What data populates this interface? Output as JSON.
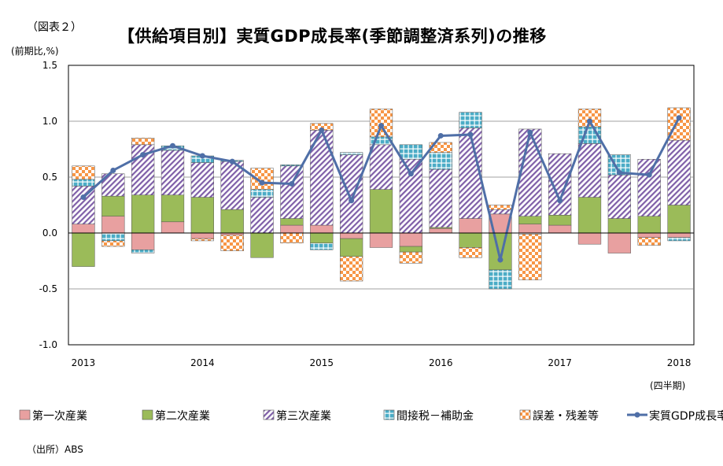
{
  "figure_label": "（図表２）",
  "unit_label": "(前期比,%)",
  "title": "【供給項目別】実質GDP成長率(季節調整済系列)の推移",
  "period_label": "(四半期)",
  "source": "（出所）ABS",
  "chart_data": {
    "type": "bar",
    "stacked": true,
    "title": "【供給項目別】実質GDP成長率(季節調整済系列)の推移",
    "ylabel": "(前期比,%)",
    "xlabel": "(四半期)",
    "ylim": [
      -1.0,
      1.5
    ],
    "yticks": [
      "1.5",
      "1.0",
      "0.5",
      "0.0",
      "-0.5",
      "-1.0"
    ],
    "ytick_values": [
      1.5,
      1.0,
      0.5,
      0.0,
      -0.5,
      -1.0
    ],
    "grid": true,
    "legend_position": "bottom",
    "year_labels": [
      {
        "label": "2013",
        "index": 0
      },
      {
        "label": "2014",
        "index": 4
      },
      {
        "label": "2015",
        "index": 8
      },
      {
        "label": "2016",
        "index": 12
      },
      {
        "label": "2017",
        "index": 16
      },
      {
        "label": "2018",
        "index": 20
      }
    ],
    "categories": [
      "2013Q1",
      "2013Q2",
      "2013Q3",
      "2013Q4",
      "2014Q1",
      "2014Q2",
      "2014Q3",
      "2014Q4",
      "2015Q1",
      "2015Q2",
      "2015Q3",
      "2015Q4",
      "2016Q1",
      "2016Q2",
      "2016Q3",
      "2016Q4",
      "2017Q1",
      "2017Q2",
      "2017Q3",
      "2017Q4",
      "2018Q1"
    ],
    "series": [
      {
        "name": "第一次産業",
        "color": "#e8a0a0",
        "pattern": "solid",
        "values": [
          0.08,
          0.15,
          -0.15,
          0.1,
          -0.05,
          -0.02,
          0.0,
          0.07,
          0.07,
          -0.05,
          -0.13,
          -0.12,
          0.04,
          0.13,
          0.17,
          0.08,
          0.07,
          -0.1,
          -0.18,
          -0.04,
          -0.04
        ]
      },
      {
        "name": "第二次産業",
        "color": "#9bbb59",
        "pattern": "solid",
        "values": [
          -0.3,
          0.18,
          0.34,
          0.24,
          0.32,
          0.21,
          -0.22,
          0.06,
          -0.09,
          -0.16,
          0.39,
          -0.05,
          0.01,
          -0.13,
          -0.33,
          0.07,
          0.09,
          0.32,
          0.13,
          0.15,
          0.25
        ]
      },
      {
        "name": "第三次産業",
        "color": "#7f5fa8",
        "pattern": "hatch",
        "values": [
          0.34,
          0.2,
          0.45,
          0.4,
          0.31,
          0.43,
          0.32,
          0.47,
          0.85,
          0.7,
          0.4,
          0.66,
          0.52,
          0.81,
          0.04,
          0.78,
          0.55,
          0.48,
          0.39,
          0.51,
          0.58
        ]
      },
      {
        "name": "間接税－補助金",
        "color": "#4bacc6",
        "pattern": "grid",
        "values": [
          0.06,
          -0.07,
          -0.03,
          0.04,
          0.06,
          0.01,
          0.07,
          0.01,
          -0.06,
          0.02,
          0.07,
          0.13,
          0.15,
          0.14,
          -0.17,
          -0.01,
          0.0,
          0.15,
          0.18,
          0.0,
          -0.03
        ]
      },
      {
        "name": "誤差・残差等",
        "color": "#f79646",
        "pattern": "check",
        "values": [
          0.12,
          -0.05,
          0.06,
          0.0,
          -0.02,
          -0.14,
          0.19,
          -0.09,
          0.06,
          -0.22,
          0.25,
          -0.1,
          0.09,
          -0.09,
          0.04,
          -0.41,
          0.0,
          0.16,
          0.0,
          -0.07,
          0.29
        ]
      },
      {
        "name": "実質GDP成長率",
        "color": "#4f6fa7",
        "type": "line",
        "values": [
          0.32,
          0.56,
          0.7,
          0.78,
          0.69,
          0.64,
          0.45,
          0.44,
          0.92,
          0.29,
          0.96,
          0.53,
          0.87,
          0.88,
          -0.24,
          0.9,
          0.29,
          1.0,
          0.54,
          0.52,
          1.03
        ]
      }
    ]
  }
}
